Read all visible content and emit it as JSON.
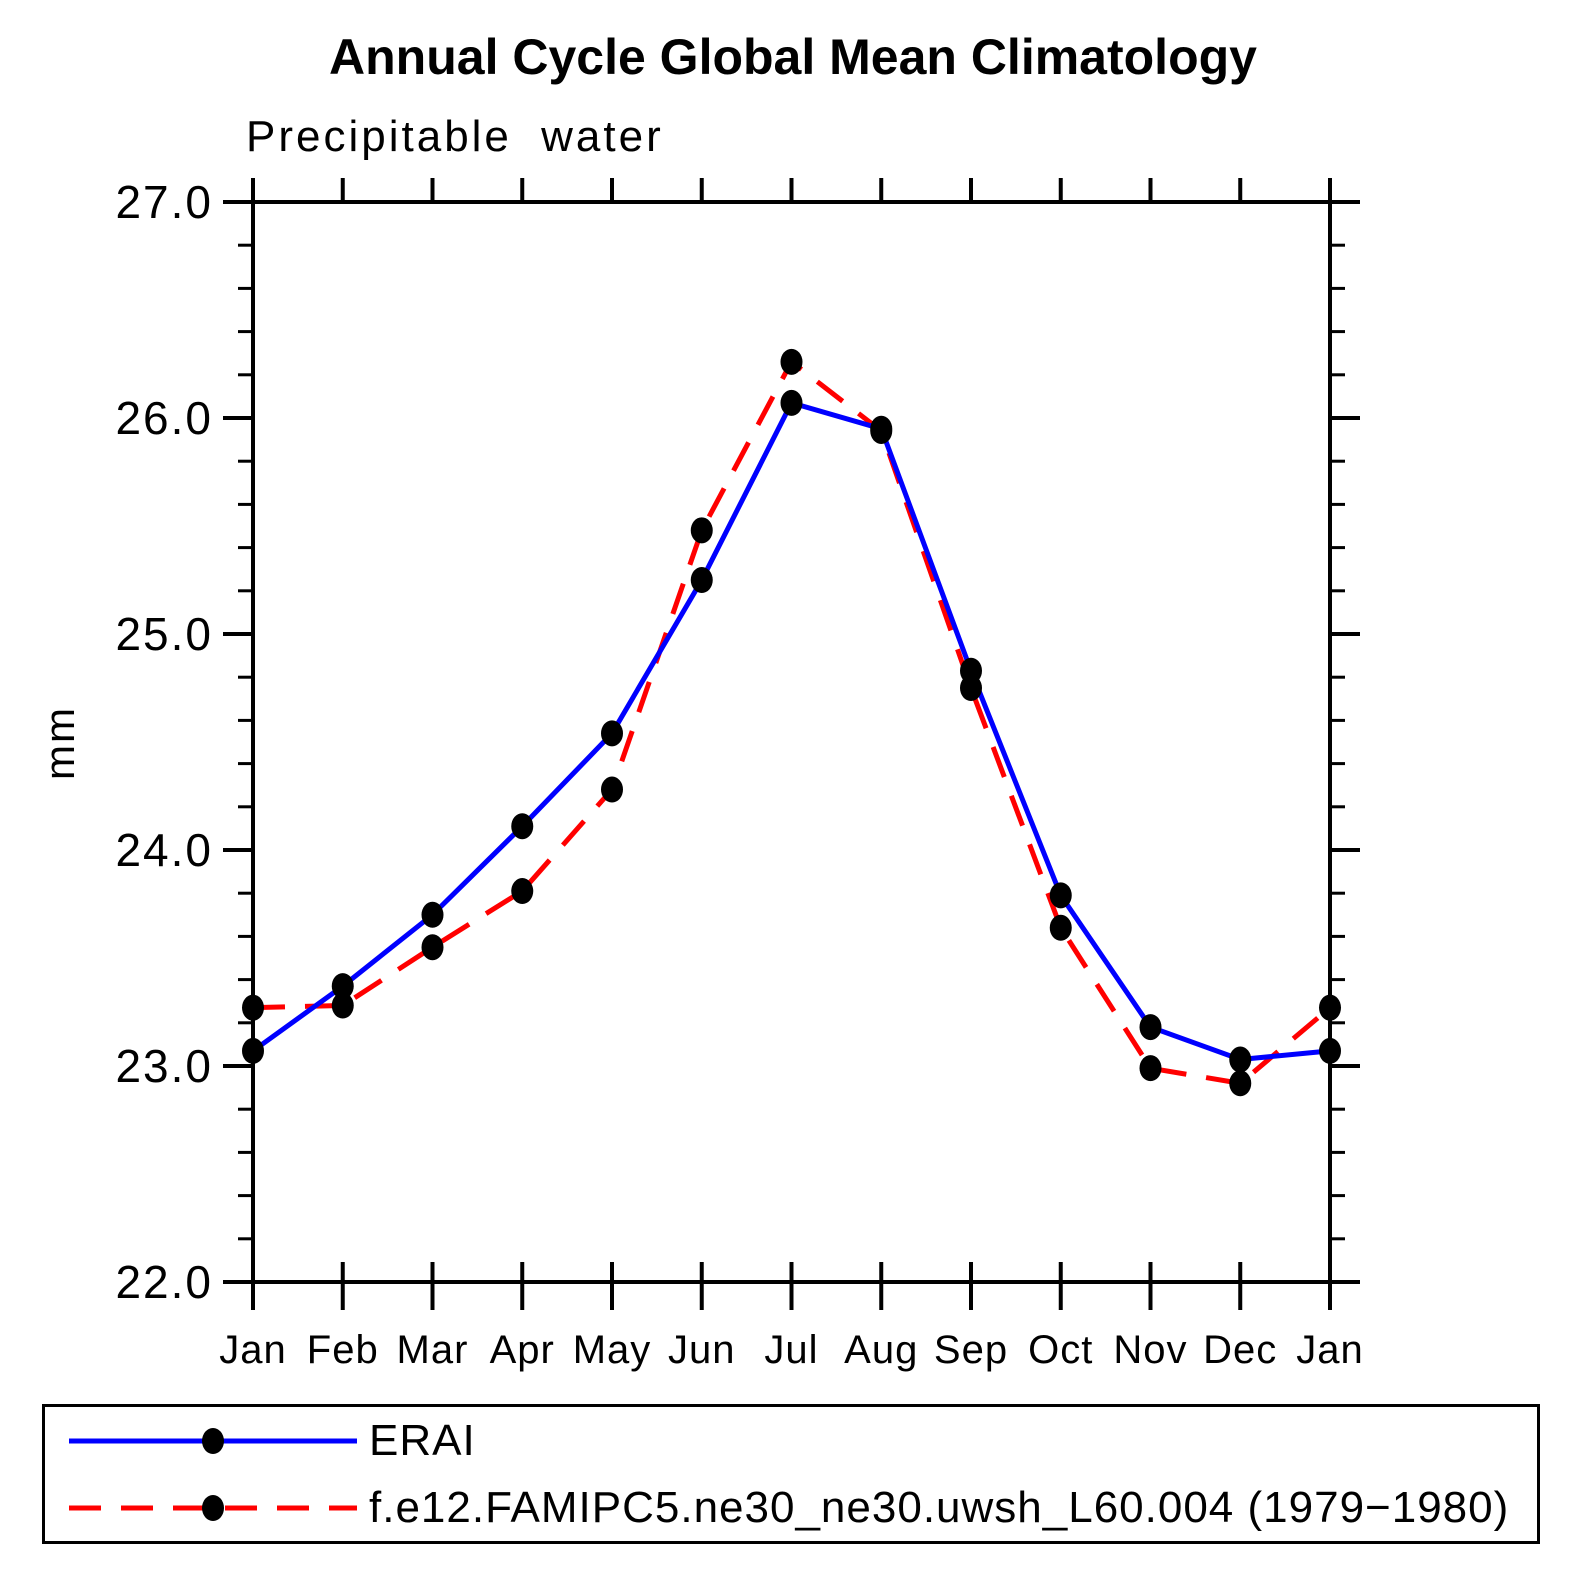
{
  "chart_data": {
    "type": "line",
    "title": "Annual Cycle Global Mean Climatology",
    "subtitle": "Precipitable water",
    "ylabel": "mm",
    "categories": [
      "Jan",
      "Feb",
      "Mar",
      "Apr",
      "May",
      "Jun",
      "Jul",
      "Aug",
      "Sep",
      "Oct",
      "Nov",
      "Dec",
      "Jan"
    ],
    "series": [
      {
        "name": "ERAI",
        "color": "#0000ff",
        "line_style": "solid",
        "marker": "filled-oval",
        "marker_color": "#000000",
        "values": [
          23.07,
          23.37,
          23.7,
          24.11,
          24.54,
          25.25,
          26.07,
          25.95,
          24.83,
          23.79,
          23.18,
          23.03,
          23.07
        ]
      },
      {
        "name": "f.e12.FAMIPC5.ne30_ne30.uwsh_L60.004 (1979−1980)",
        "color": "#ff0000",
        "line_style": "dashed",
        "marker": "filled-oval",
        "marker_color": "#000000",
        "values": [
          23.27,
          23.28,
          23.55,
          23.81,
          24.28,
          25.48,
          26.26,
          25.94,
          24.75,
          23.64,
          22.99,
          22.92,
          23.27
        ]
      }
    ],
    "ylim": [
      22.0,
      27.0
    ],
    "ytick_step": 1.0,
    "ytick_minor_step": 0.2,
    "ytick_labels": [
      "22.0",
      "23.0",
      "24.0",
      "25.0",
      "26.0",
      "27.0"
    ],
    "grid": false,
    "legend_position": "bottom"
  }
}
